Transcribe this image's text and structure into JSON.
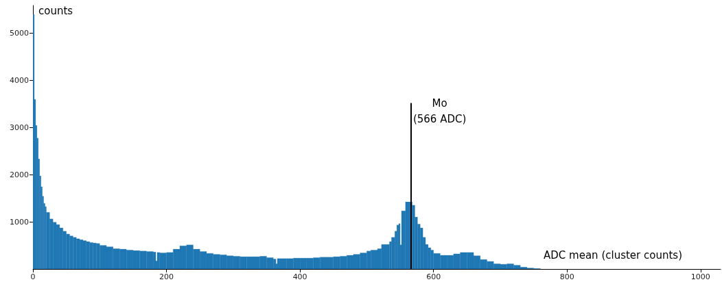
{
  "chart_data": {
    "type": "histogram",
    "xlabel": "ADC mean (cluster counts)",
    "ylabel": "counts",
    "color": "#1f77b4",
    "bins": [
      0,
      2,
      4,
      6,
      8,
      10,
      12,
      14,
      16,
      18,
      20,
      25,
      30,
      35,
      40,
      45,
      50,
      55,
      60,
      65,
      70,
      75,
      80,
      85,
      90,
      95,
      100,
      110,
      120,
      130,
      140,
      150,
      160,
      170,
      180,
      184,
      186,
      190,
      200,
      210,
      220,
      230,
      240,
      250,
      260,
      270,
      280,
      290,
      300,
      310,
      320,
      330,
      340,
      350,
      360,
      364,
      366,
      370,
      380,
      390,
      400,
      410,
      420,
      430,
      440,
      450,
      460,
      470,
      480,
      490,
      500,
      506,
      516,
      522,
      534,
      537,
      542,
      545,
      548,
      550,
      552,
      558,
      568,
      572,
      576,
      580,
      584,
      588,
      592,
      596,
      600,
      610,
      620,
      630,
      640,
      650,
      660,
      670,
      680,
      690,
      700,
      710,
      720,
      730,
      740,
      750,
      760
    ],
    "values": [
      5390,
      3590,
      3040,
      2770,
      2330,
      1970,
      1740,
      1540,
      1390,
      1320,
      1200,
      1060,
      990,
      940,
      870,
      800,
      740,
      700,
      670,
      640,
      620,
      600,
      580,
      560,
      550,
      540,
      500,
      470,
      430,
      420,
      400,
      390,
      380,
      370,
      360,
      170,
      350,
      340,
      350,
      420,
      490,
      510,
      420,
      370,
      330,
      310,
      300,
      280,
      270,
      260,
      260,
      260,
      270,
      240,
      210,
      110,
      220,
      220,
      220,
      230,
      230,
      230,
      240,
      250,
      250,
      260,
      270,
      290,
      310,
      340,
      380,
      400,
      430,
      520,
      580,
      670,
      800,
      930,
      960,
      510,
      1230,
      1420,
      1350,
      1100,
      950,
      870,
      670,
      520,
      450,
      400,
      330,
      290,
      290,
      320,
      350,
      350,
      280,
      200,
      160,
      110,
      100,
      110,
      80,
      40,
      20,
      10
    ],
    "xlim": [
      0,
      1030
    ],
    "xticks": [
      0,
      200,
      400,
      600,
      800,
      1000
    ],
    "ylim": [
      0,
      5580
    ],
    "yticks": [
      1000,
      2000,
      3000,
      4000,
      5000
    ],
    "ref_lines": [
      {
        "axis": "x",
        "value": 566,
        "label": "Mo\n(566 ADC)"
      }
    ]
  }
}
